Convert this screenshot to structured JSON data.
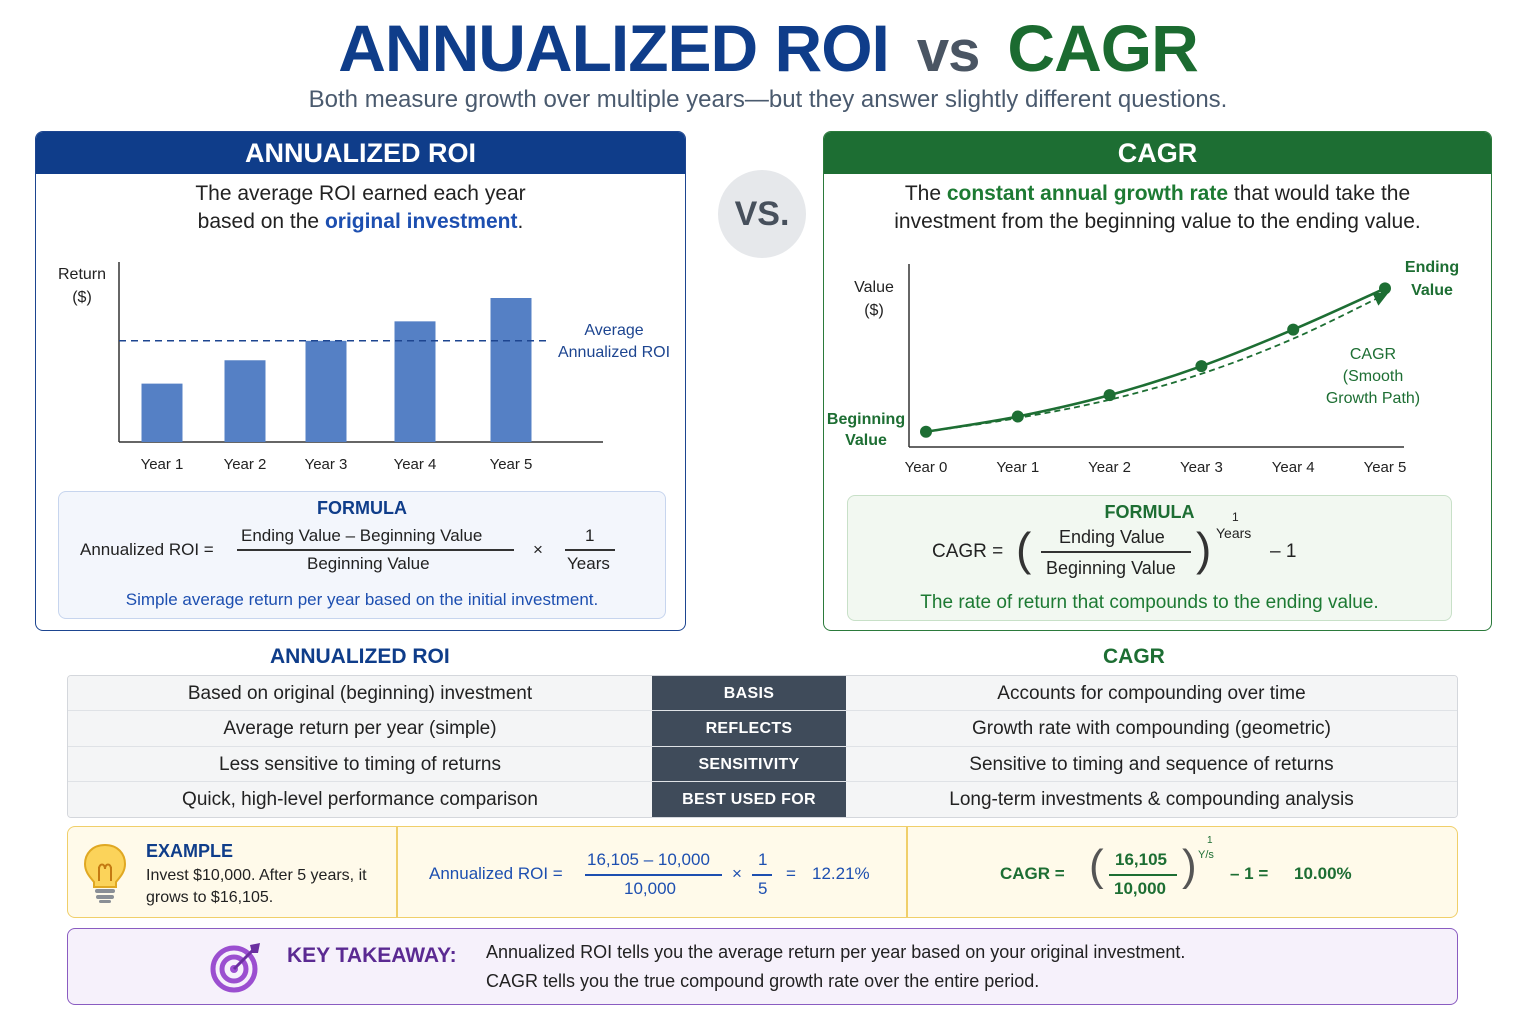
{
  "header": {
    "title_roi": "ANNUALIZED ROI",
    "title_vs": "vs",
    "title_cagr": "CAGR",
    "subtitle": "Both measure growth over multiple years—but they answer slightly different questions."
  },
  "vs_badge": "VS.",
  "roi_panel": {
    "heading": "ANNUALIZED ROI",
    "desc_line1": "The average ROI earned each year",
    "desc_line2_pre": "based on the ",
    "desc_line2_hl": "original investment",
    "desc_line2_post": ".",
    "formula": {
      "title": "FORMULA",
      "lhs": "Annualized ROI =",
      "numerator": "Ending Value – Beginning Value",
      "denominator": "Beginning Value",
      "times": "×",
      "num2": "1",
      "den2": "Years",
      "note": "Simple average return per year based on the initial investment."
    }
  },
  "cagr_panel": {
    "heading": "CAGR",
    "desc_pre": "The ",
    "desc_hl": "constant annual growth rate",
    "desc_post": " that would take the",
    "desc_line2": "investment from the beginning value to the ending value.",
    "formula": {
      "title": "FORMULA",
      "lhs": "CAGR =",
      "numerator": "Ending Value",
      "denominator": "Beginning Value",
      "exp_num": "1",
      "exp_den": "Years",
      "minus": "– 1",
      "note": "The rate of return that compounds to the ending value."
    }
  },
  "chart_data": [
    {
      "type": "bar",
      "ylabel": "Return\n($)",
      "categories": [
        "Year 1",
        "Year 2",
        "Year 3",
        "Year 4",
        "Year 5"
      ],
      "values": [
        60,
        84,
        104,
        124,
        148
      ],
      "average_line": 104,
      "average_label": "Average\nAnnualized ROI",
      "ylim": [
        0,
        185
      ],
      "grid": false,
      "bar_color": "#5580c5",
      "line_color": "#1d4590"
    },
    {
      "type": "line",
      "ylabel": "Value\n($)",
      "categories": [
        "Year 0",
        "Year 1",
        "Year 2",
        "Year 3",
        "Year 4",
        "Year 5"
      ],
      "series": [
        {
          "values": [
            100,
            110,
            124,
            143,
            167,
            194
          ],
          "style": "solid"
        },
        {
          "name": "CAGR\n(Smooth\nGrowth Path)",
          "values": [
            100,
            109,
            121,
            138,
            161,
            190
          ],
          "style": "dashed"
        }
      ],
      "annotations": {
        "start": "Beginning\nValue",
        "end": "Ending\nValue"
      },
      "ylim": [
        90,
        210
      ],
      "grid": false,
      "line_color": "#1d6e33"
    }
  ],
  "comparison": {
    "left_header": "ANNUALIZED ROI",
    "right_header": "CAGR",
    "rows": [
      {
        "left": "Based on original (beginning) investment",
        "mid": "BASIS",
        "right": "Accounts for compounding over time"
      },
      {
        "left": "Average return per year (simple)",
        "mid": "REFLECTS",
        "right": "Growth rate with compounding (geometric)"
      },
      {
        "left": "Less sensitive to timing of returns",
        "mid": "SENSITIVITY",
        "right": "Sensitive to timing and sequence of returns"
      },
      {
        "left": "Quick, high-level performance comparison",
        "mid": "BEST USED FOR",
        "right": "Long-term investments & compounding analysis"
      }
    ]
  },
  "example": {
    "title": "EXAMPLE",
    "text": "Invest $10,000. After 5 years, it grows to $16,105.",
    "roi_lhs": "Annualized ROI =",
    "roi_num": "16,105 – 10,000",
    "roi_den": "10,000",
    "roi_times": "×",
    "roi_num2": "1",
    "roi_den2": "5",
    "roi_eq": "=",
    "roi_result": "12.21%",
    "cagr_lhs": "CAGR =",
    "cagr_num": "16,105",
    "cagr_den": "10,000",
    "cagr_exp_num": "1",
    "cagr_exp_den": "Y/s",
    "cagr_minus": "– 1 =",
    "cagr_result": "10.00%"
  },
  "takeaway": {
    "title": "KEY TAKEAWAY:",
    "line1": "Annualized ROI tells you the average return per year based on your original investment.",
    "line2": "CAGR tells you the true compound growth rate over the entire period."
  },
  "colors": {
    "roi_blue": "#0f3d8a",
    "cagr_green": "#1d6e33",
    "takeaway_purple": "#5b2a92",
    "example_gold": "#f0cf6a"
  }
}
